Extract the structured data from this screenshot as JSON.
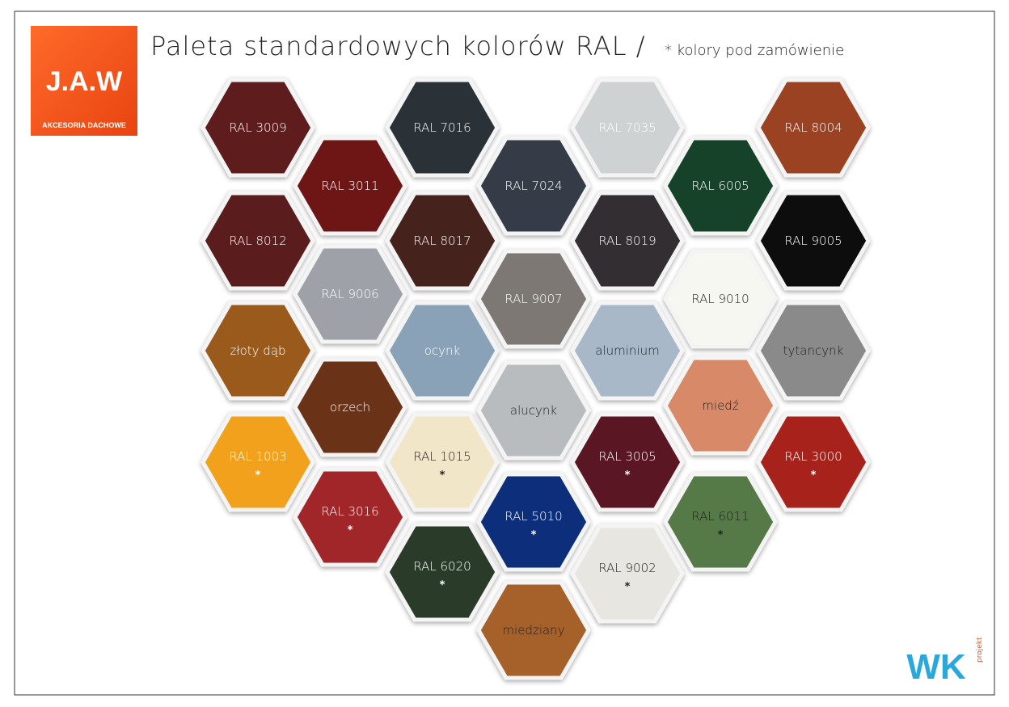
{
  "header": {
    "title": "Paleta standardowych kolorów RAL /",
    "subtitle": "* kolory pod zamówienie"
  },
  "logo": {
    "name": "J.A.W",
    "tagline": "AKCESORIA DACHOWE"
  },
  "footer_logo": {
    "name": "WK",
    "tagline": "projekt"
  },
  "swatches": [
    {
      "label": "RAL 3009",
      "color": "#5e1f1e",
      "text_color": "#ffffff"
    },
    {
      "label": "RAL 8012",
      "color": "#5a1f1e",
      "text_color": "#ffffff"
    },
    {
      "label": "złoty dąb",
      "color": "#9a5a1e",
      "text_color": "#ffffff"
    },
    {
      "label": "RAL 1003",
      "note": "*",
      "color": "#f2a11f",
      "text_color": "#ffffff"
    },
    {
      "label": "RAL 3011",
      "color": "#6e1416",
      "text_color": "#ffffff"
    },
    {
      "label": "RAL 9006",
      "color": "#9ea2a8",
      "text_color": "#ffffff"
    },
    {
      "label": "orzech",
      "color": "#6a3014",
      "text_color": "#ffffff"
    },
    {
      "label": "RAL 3016",
      "note": "*",
      "color": "#a1282a",
      "text_color": "#ffffff"
    },
    {
      "label": "RAL 7016",
      "color": "#2a3038",
      "text_color": "#ffffff"
    },
    {
      "label": "RAL 8017",
      "color": "#45201b",
      "text_color": "#ffffff"
    },
    {
      "label": "ocynk",
      "color": "#8aa2b8",
      "text_color": "#ffffff"
    },
    {
      "label": "RAL 1015",
      "note": "*",
      "color": "#f1e6c8",
      "text_color": "#222222"
    },
    {
      "label": "RAL 6020",
      "note": "*",
      "color": "#2a3a2a",
      "text_color": "#ffffff"
    },
    {
      "label": "RAL 7024",
      "color": "#343a47",
      "text_color": "#ffffff"
    },
    {
      "label": "RAL 9007",
      "color": "#7d7873",
      "text_color": "#ffffff"
    },
    {
      "label": "alucynk",
      "color": "#b8bcbe",
      "text_color": "#222222"
    },
    {
      "label": "RAL 5010",
      "note": "*",
      "color": "#0f2f7a",
      "text_color": "#ffffff"
    },
    {
      "label": "miedziany",
      "color": "#a6602a",
      "text_color": "#222222"
    },
    {
      "label": "RAL 7035",
      "color": "#ced2d3",
      "text_color": "#ffffff"
    },
    {
      "label": "RAL 8019",
      "color": "#332f31",
      "text_color": "#ffffff"
    },
    {
      "label": "aluminium",
      "color": "#a8b8c8",
      "text_color": "#222222"
    },
    {
      "label": "RAL 3005",
      "note": "*",
      "color": "#5a1420",
      "text_color": "#ffffff"
    },
    {
      "label": "RAL 9002",
      "note": "*",
      "color": "#e8e6e0",
      "text_color": "#222222"
    },
    {
      "label": "RAL 6005",
      "color": "#13432a",
      "text_color": "#ffffff"
    },
    {
      "label": "RAL 9010",
      "color": "#f7f7f2",
      "text_color": "#222222"
    },
    {
      "label": "miedź",
      "color": "#d88a68",
      "text_color": "#222222"
    },
    {
      "label": "RAL 6011",
      "note": "*",
      "color": "#557a46",
      "text_color": "#222222"
    },
    {
      "label": "RAL 8004",
      "color": "#9a4324",
      "text_color": "#ffffff"
    },
    {
      "label": "RAL 9005",
      "color": "#0a0b0d",
      "text_color": "#ffffff"
    },
    {
      "label": "tytancynk",
      "color": "#8a8a8a",
      "text_color": "#222222"
    },
    {
      "label": "RAL 3000",
      "note": "*",
      "color": "#a8201e",
      "text_color": "#ffffff"
    }
  ]
}
